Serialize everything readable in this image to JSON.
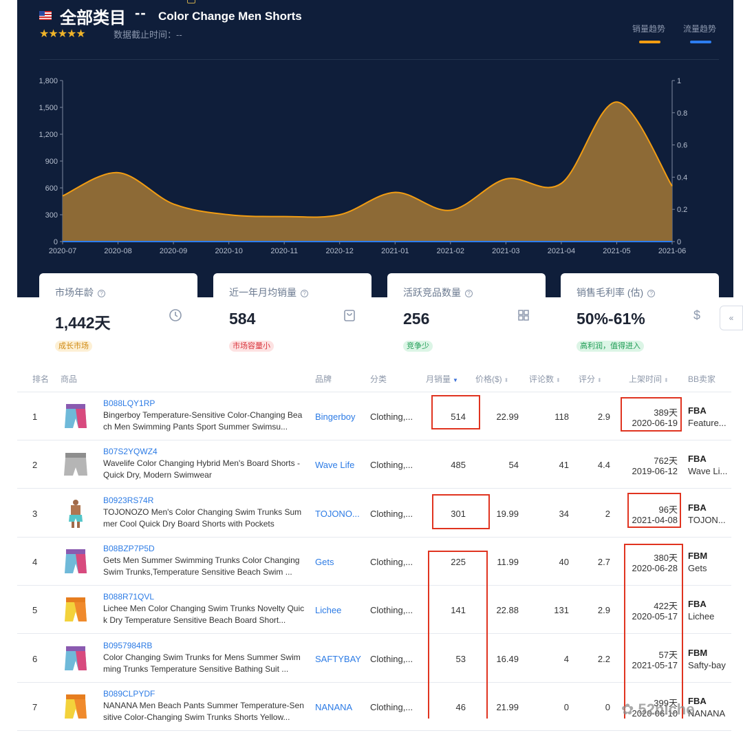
{
  "header": {
    "title_cn": "全部类目",
    "separator": "--",
    "title_en": "Color Change Men Shorts",
    "stars": "★★★★★",
    "data_cutoff": "数据截止时间：--",
    "legend": [
      {
        "label": "销量趋势",
        "color": "#f29d12"
      },
      {
        "label": "流量趋势",
        "color": "#2d7df0"
      }
    ]
  },
  "chart_data": {
    "type": "area",
    "x": [
      "2020-07",
      "2020-08",
      "2020-09",
      "2020-10",
      "2020-11",
      "2020-12",
      "2021-01",
      "2021-02",
      "2021-03",
      "2021-04",
      "2021-05",
      "2021-06"
    ],
    "series": [
      {
        "name": "销量趋势",
        "values": [
          510,
          770,
          420,
          300,
          280,
          300,
          550,
          350,
          700,
          650,
          1560,
          620
        ]
      },
      {
        "name": "流量趋势",
        "values": [
          0,
          0,
          0,
          0,
          0,
          0,
          0,
          0,
          0,
          0,
          0,
          0
        ]
      }
    ],
    "y_left": {
      "ticks": [
        "0",
        "300",
        "600",
        "900",
        "1,200",
        "1,500",
        "1,800"
      ],
      "ylim": [
        0,
        1800
      ]
    },
    "y_right": {
      "ticks": [
        "0",
        "0.2",
        "0.4",
        "0.6",
        "0.8",
        "1"
      ],
      "ylim": [
        0,
        1
      ]
    },
    "grid": false
  },
  "cards": [
    {
      "label": "市场年龄",
      "value": "1,442天",
      "icon": "clock-icon",
      "badge": "成长市场",
      "badge_bg": "#fdf0d5",
      "badge_color": "#d08a13"
    },
    {
      "label": "近一年月均销量",
      "value": "584",
      "icon": "shopping-bag-icon",
      "badge": "市场容量小",
      "badge_bg": "#fde2e2",
      "badge_color": "#d9363e"
    },
    {
      "label": "活跃竞品数量",
      "value": "256",
      "icon": "grid-icon",
      "badge": "竞争少",
      "badge_bg": "#dcf5e6",
      "badge_color": "#1f9d55"
    },
    {
      "label": "销售毛利率 (估)",
      "value": "50%-61%",
      "icon": "dollar-icon",
      "badge": "高利润，值得进入",
      "badge_bg": "#dcf5e6",
      "badge_color": "#1f9d55"
    }
  ],
  "side_tab": "«",
  "table": {
    "headers": {
      "rank": "排名",
      "product": "商品",
      "brand": "品牌",
      "category": "分类",
      "monthly_sales": "月销量",
      "price": "价格($)",
      "reviews": "评论数",
      "rating": "评分",
      "launch": "上架时间",
      "buybox": "BB卖家"
    },
    "rows": [
      {
        "rank": "1",
        "asin": "B088LQY1RP",
        "name": "Bingerboy Temperature-Sensitive Color-Changing Beach Men Swimming Pants Sport Summer Swimsu...",
        "brand": "Bingerboy",
        "category": "Clothing,...",
        "sales": "514",
        "price": "22.99",
        "reviews": "118",
        "rating": "2.9",
        "days": "389天",
        "date": "2020-06-19",
        "fulfillment": "FBA",
        "seller": "Feature...",
        "thumb": "color-change"
      },
      {
        "rank": "2",
        "asin": "B07S2YQWZ4",
        "name": "Wavelife Color Changing Hybrid Men's Board Shorts - Quick Dry, Modern Swimwear",
        "brand": "Wave Life",
        "category": "Clothing,...",
        "sales": "485",
        "price": "54",
        "reviews": "41",
        "rating": "4.4",
        "days": "762天",
        "date": "2019-06-12",
        "fulfillment": "FBA",
        "seller": "Wave Li...",
        "thumb": "grey"
      },
      {
        "rank": "3",
        "asin": "B0923RS74R",
        "name": "TOJONOZO Men's Color Changing Swim Trunks Summer Cool Quick Dry Board Shorts with Pockets",
        "brand": "TOJONO...",
        "category": "Clothing,...",
        "sales": "301",
        "price": "19.99",
        "reviews": "34",
        "rating": "2",
        "days": "96天",
        "date": "2021-04-08",
        "fulfillment": "FBA",
        "seller": "TOJON...",
        "thumb": "model"
      },
      {
        "rank": "4",
        "asin": "B08BZP7P5D",
        "name": "Gets Men Summer Swimming Trunks Color Changing Swim Trunks,Temperature Sensitive Beach Swim ...",
        "brand": "Gets",
        "category": "Clothing,...",
        "sales": "225",
        "price": "11.99",
        "reviews": "40",
        "rating": "2.7",
        "days": "380天",
        "date": "2020-06-28",
        "fulfillment": "FBM",
        "seller": "Gets",
        "thumb": "color-change"
      },
      {
        "rank": "5",
        "asin": "B088R71QVL",
        "name": "Lichee Men Color Changing Swim Trunks Novelty Quick Dry Temperature Sensitive Beach Board Short...",
        "brand": "Lichee",
        "category": "Clothing,...",
        "sales": "141",
        "price": "22.88",
        "reviews": "131",
        "rating": "2.9",
        "days": "422天",
        "date": "2020-05-17",
        "fulfillment": "FBA",
        "seller": "Lichee",
        "thumb": "yellow"
      },
      {
        "rank": "6",
        "asin": "B0957984RB",
        "name": "Color Changing Swim Trunks for Mens Summer Swimming Trunks Temperature Sensitive Bathing Suit ...",
        "brand": "SAFTYBAY",
        "category": "Clothing,...",
        "sales": "53",
        "price": "16.49",
        "reviews": "4",
        "rating": "2.2",
        "days": "57天",
        "date": "2021-05-17",
        "fulfillment": "FBM",
        "seller": "Safty-bay",
        "thumb": "color-change"
      },
      {
        "rank": "7",
        "asin": "B089CLPYDF",
        "name": "NANANA Men Beach Pants Summer Temperature-Sensitive Color-Changing Swim Trunks Shorts Yellow...",
        "brand": "NANANA",
        "category": "Clothing,...",
        "sales": "46",
        "price": "21.99",
        "reviews": "0",
        "rating": "0",
        "days": "399天",
        "date": "2020-06-10",
        "fulfillment": "FBA",
        "seller": "NANANA",
        "thumb": "yellow"
      }
    ]
  },
  "watermark": "52niche"
}
